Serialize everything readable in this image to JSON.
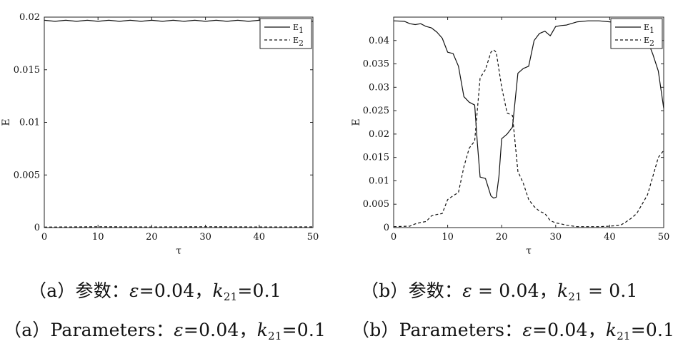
{
  "chart_data": [
    {
      "type": "line",
      "panel": "a",
      "title": "",
      "xlabel": "τ",
      "ylabel": "E",
      "xlim": [
        0,
        50
      ],
      "ylim": [
        0,
        0.02
      ],
      "xticks": [
        "0",
        "10",
        "20",
        "30",
        "40",
        "50"
      ],
      "yticks": [
        "0",
        "0.005",
        "0.01",
        "0.015",
        "0.02"
      ],
      "grid": false,
      "legend_position": "top-right",
      "series": [
        {
          "name": "E1",
          "label_main": "E",
          "label_sub": "1",
          "style": "solid",
          "x": [
            0,
            2,
            4,
            6,
            8,
            10,
            12,
            14,
            16,
            18,
            20,
            22,
            24,
            26,
            28,
            30,
            32,
            34,
            36,
            38,
            40,
            42,
            44,
            46,
            48,
            50
          ],
          "y": [
            0.0197,
            0.0196,
            0.0197,
            0.0196,
            0.0197,
            0.0196,
            0.0197,
            0.0196,
            0.0197,
            0.0196,
            0.0197,
            0.0196,
            0.0197,
            0.0196,
            0.0197,
            0.0196,
            0.0197,
            0.0196,
            0.0197,
            0.0196,
            0.0197,
            0.0196,
            0.0197,
            0.0196,
            0.0197,
            0.0196
          ]
        },
        {
          "name": "E2",
          "label_main": "E",
          "label_sub": "2",
          "style": "dashed",
          "x": [
            0,
            10,
            20,
            30,
            40,
            50
          ],
          "y": [
            5e-05,
            8e-05,
            6e-05,
            8e-05,
            6e-05,
            7e-05
          ]
        }
      ]
    },
    {
      "type": "line",
      "panel": "b",
      "title": "",
      "xlabel": "τ",
      "ylabel": "E",
      "xlim": [
        0,
        50
      ],
      "ylim": [
        0,
        0.045
      ],
      "xticks": [
        "0",
        "10",
        "20",
        "30",
        "40",
        "50"
      ],
      "yticks": [
        "0",
        "0.005",
        "0.01",
        "0.015",
        "0.02",
        "0.025",
        "0.03",
        "0.035",
        "0.04"
      ],
      "grid": false,
      "legend_position": "top-right",
      "series": [
        {
          "name": "E1",
          "label_main": "E",
          "label_sub": "1",
          "style": "solid",
          "x": [
            0,
            2,
            3,
            4,
            5,
            6,
            7,
            8,
            9,
            10,
            11,
            12,
            13,
            14,
            15,
            15.5,
            16,
            17,
            18,
            18.5,
            19,
            19.5,
            20,
            21,
            22,
            23,
            24,
            25,
            26,
            27,
            28,
            29,
            30,
            31,
            32,
            34,
            36,
            38,
            40,
            42,
            44,
            46,
            47,
            48,
            49,
            50
          ],
          "y": [
            0.0442,
            0.0441,
            0.0436,
            0.0434,
            0.0436,
            0.043,
            0.0427,
            0.0418,
            0.0405,
            0.0375,
            0.0372,
            0.0345,
            0.028,
            0.0268,
            0.0262,
            0.018,
            0.0108,
            0.0105,
            0.0068,
            0.0063,
            0.0065,
            0.011,
            0.019,
            0.02,
            0.0215,
            0.033,
            0.034,
            0.0345,
            0.04,
            0.0415,
            0.042,
            0.041,
            0.043,
            0.0432,
            0.0433,
            0.044,
            0.0442,
            0.0442,
            0.044,
            0.0437,
            0.0435,
            0.043,
            0.04,
            0.037,
            0.0335,
            0.0255
          ]
        },
        {
          "name": "E2",
          "label_main": "E",
          "label_sub": "2",
          "style": "dashed",
          "x": [
            0,
            3,
            4,
            5,
            6,
            7,
            8,
            9,
            10,
            11,
            12,
            13,
            14,
            15,
            16,
            17,
            18,
            18.5,
            19,
            20,
            21,
            22,
            23,
            24,
            25,
            26,
            27,
            28,
            29,
            30,
            31,
            32,
            34,
            36,
            38,
            40,
            42,
            43,
            44,
            45,
            46,
            47,
            48,
            49,
            50
          ],
          "y": [
            0.0002,
            0.0003,
            0.0008,
            0.0011,
            0.0013,
            0.0025,
            0.0028,
            0.003,
            0.006,
            0.0068,
            0.0075,
            0.013,
            0.017,
            0.0185,
            0.032,
            0.0338,
            0.0375,
            0.038,
            0.0375,
            0.03,
            0.0245,
            0.024,
            0.012,
            0.0095,
            0.006,
            0.0045,
            0.0035,
            0.003,
            0.0015,
            0.001,
            0.0008,
            0.0005,
            0.0002,
            0.0002,
            0.0002,
            0.0003,
            0.0005,
            0.0012,
            0.002,
            0.003,
            0.005,
            0.007,
            0.011,
            0.015,
            0.0165
          ]
        }
      ]
    }
  ],
  "captions": {
    "a_cn": {
      "open": "（a）参数：",
      "eps": "ε",
      "mid": "=0.04，",
      "k": "k",
      "sub": "21",
      "end": "=0.1"
    },
    "a_en": {
      "open": "（a）Parameters：",
      "eps": "ε",
      "mid": "=0.04，",
      "k": "k",
      "sub": "21",
      "end": "=0.1"
    },
    "b_cn": {
      "open": "（b）参数：",
      "eps": "ε",
      "mid": " = 0.04，",
      "k": "k",
      "sub": "21",
      "end": " = 0.1"
    },
    "b_en": {
      "open": "（b）Parameters：",
      "eps": "ε",
      "mid": "=0.04，",
      "k": "k",
      "sub": "21",
      "end": "=0.1"
    }
  }
}
